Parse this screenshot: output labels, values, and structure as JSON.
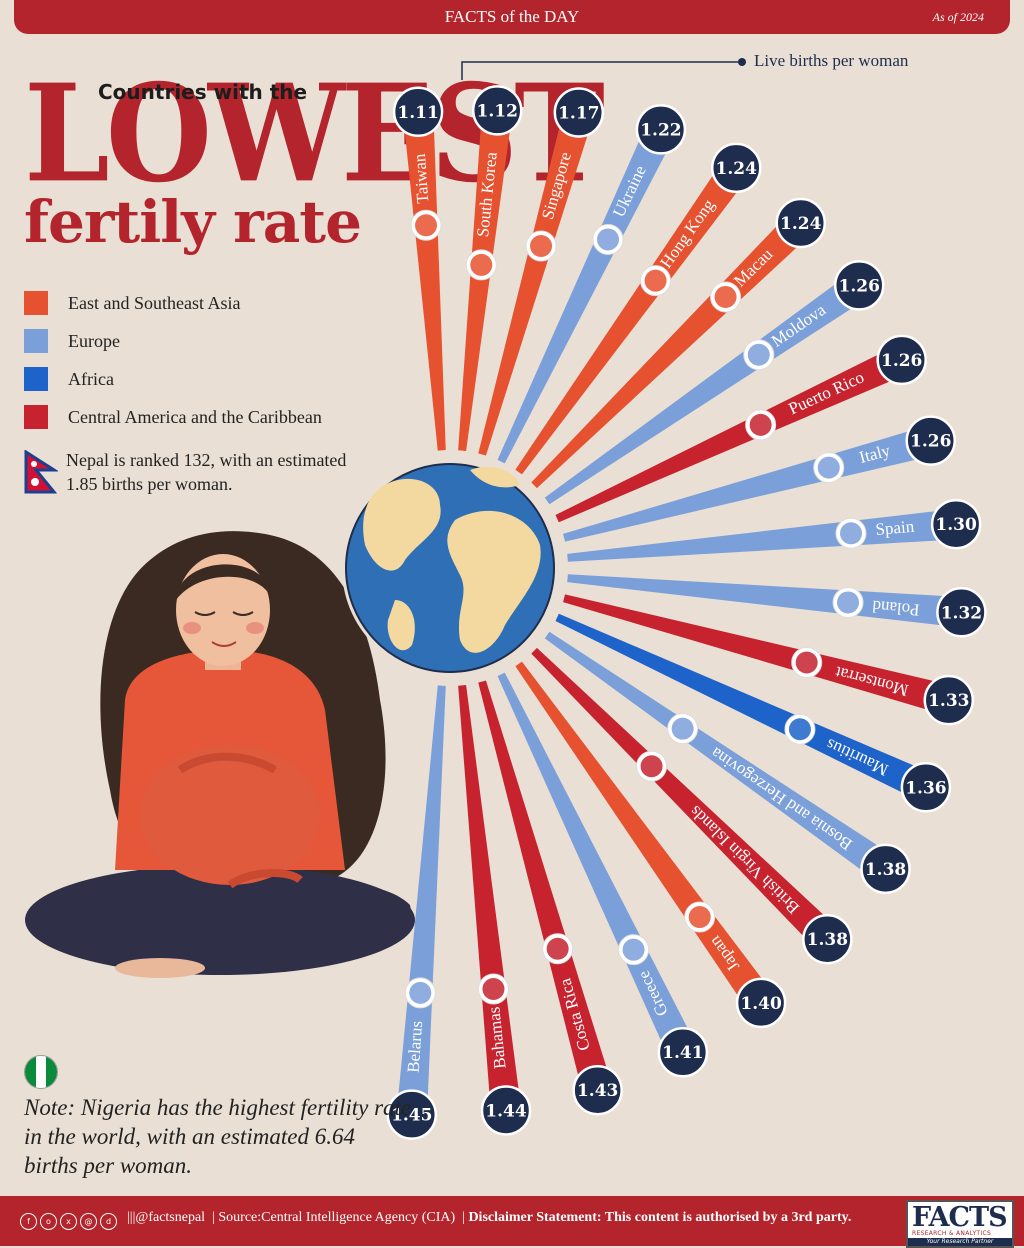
{
  "header": {
    "title": "FACTS of the DAY",
    "as_of": "As of 2024"
  },
  "title": {
    "small": "Countries with the",
    "big": "LOWEST",
    "sub": "fertily rate"
  },
  "colors": {
    "asia": "#e6512f",
    "europe": "#7b9fd8",
    "africa": "#1d63c9",
    "caribbean": "#c6232f",
    "navy": "#1e2d4d",
    "brand": "#b3242c"
  },
  "legend": [
    {
      "label": "East and Southeast Asia",
      "color": "#e6512f"
    },
    {
      "label": "Europe",
      "color": "#7b9fd8"
    },
    {
      "label": "Africa",
      "color": "#1d63c9"
    },
    {
      "label": "Central America and the Caribbean",
      "color": "#c6232f"
    }
  ],
  "nepal_note": "Nepal is ranked 132, with an estimated 1.85 births per woman.",
  "nigeria_note": "Note: Nigeria has the highest fertility rate in the world, with an estimated 6.64 births per woman.",
  "footer": {
    "handle": "@factsnepal",
    "source": "Source:Central Intelligence Agency (CIA)",
    "disclaimer": "Disclaimer Statement: This content is authorised by a 3rd party."
  },
  "logo": {
    "name": "FACTS",
    "sub": "RESEARCH & ANALYTICS",
    "tagline": "Your Research Partner"
  },
  "chart_data": {
    "type": "bar",
    "unit_label": "Live births per woman",
    "categories": [
      "Taiwan",
      "South Korea",
      "Singapore",
      "Ukraine",
      "Hong Kong",
      "Macau",
      "Moldova",
      "Puerto Rico",
      "Italy",
      "Spain",
      "Poland",
      "Montserrat",
      "Mauritius",
      "Bosnia and Herzegovina",
      "British Virgin Islands",
      "Japan",
      "Greece",
      "Costa Rica",
      "Bahamas",
      "Belarus"
    ],
    "values": [
      1.11,
      1.12,
      1.17,
      1.22,
      1.24,
      1.24,
      1.26,
      1.26,
      1.26,
      1.3,
      1.32,
      1.33,
      1.36,
      1.38,
      1.38,
      1.4,
      1.41,
      1.43,
      1.44,
      1.45
    ],
    "labels": [
      "1.11",
      "1.12",
      "1.17",
      "1.22",
      "1.24",
      "1.24",
      "1.26",
      "1.26",
      "1.26",
      "1.30",
      "1.32",
      "1.33",
      "1.36",
      "1.38",
      "1.38",
      "1.40",
      "1.41",
      "1.43",
      "1.44",
      "1.45"
    ],
    "regions": [
      "asia",
      "asia",
      "asia",
      "europe",
      "asia",
      "asia",
      "europe",
      "caribbean",
      "europe",
      "europe",
      "europe",
      "caribbean",
      "africa",
      "europe",
      "caribbean",
      "asia",
      "europe",
      "caribbean",
      "caribbean",
      "europe"
    ]
  }
}
